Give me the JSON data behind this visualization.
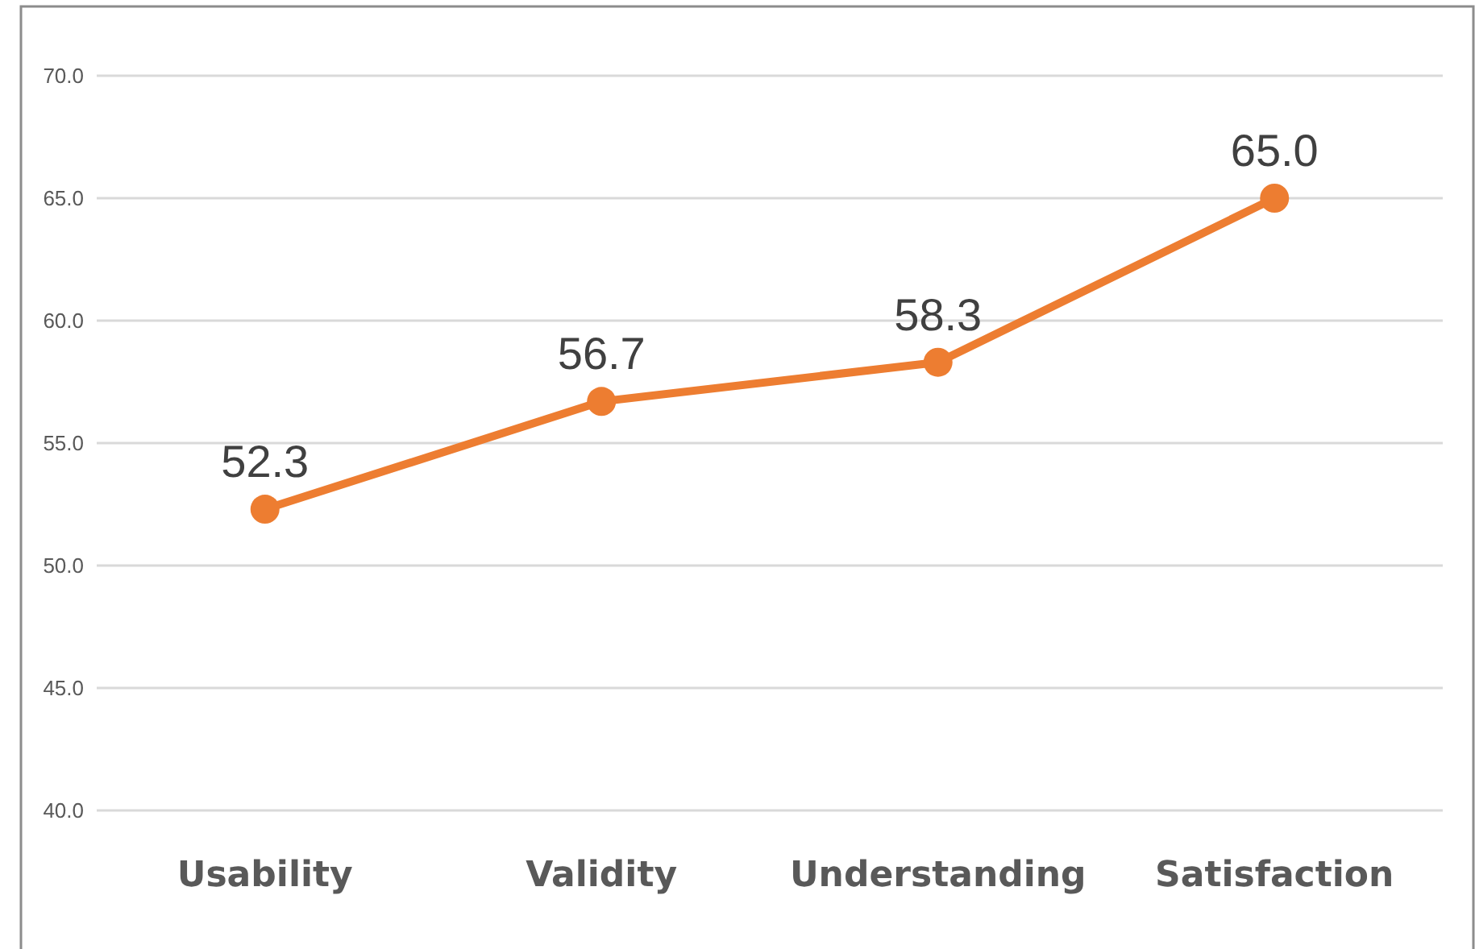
{
  "chart_data": {
    "type": "line",
    "categories": [
      "Usability",
      "Validity",
      "Understanding",
      "Satisfaction"
    ],
    "series": [
      {
        "color": "#ed7d31",
        "values": [
          52.3,
          56.7,
          58.3,
          65.0
        ],
        "value_labels": [
          "52.3",
          "56.7",
          "58.3",
          "65.0"
        ]
      }
    ],
    "ylim": [
      40,
      70
    ],
    "yticks": [
      {
        "value": 40,
        "label": "40.0"
      },
      {
        "value": 45,
        "label": "45.0"
      },
      {
        "value": 50,
        "label": "50.0"
      },
      {
        "value": 55,
        "label": "55.0"
      },
      {
        "value": 60,
        "label": "60.0"
      },
      {
        "value": 65,
        "label": "65.0"
      },
      {
        "value": 70,
        "label": "70.0"
      }
    ],
    "grid": "y",
    "marker": "circle",
    "line_style": "solid"
  }
}
